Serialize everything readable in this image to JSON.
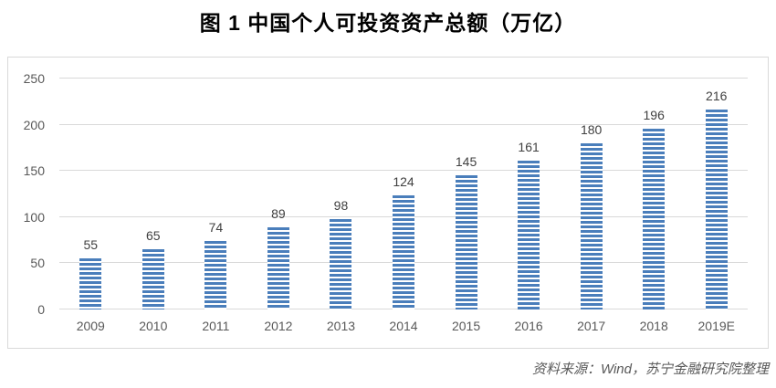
{
  "title": "图 1 中国个人可投资资产总额（万亿）",
  "source": "资料来源：Wind，苏宁金融研究院整理",
  "colors": {
    "bar_blue": "#4a7ebb",
    "grid": "#d9d9d9",
    "panel_border": "#d9d9d9",
    "axis_text": "#595959",
    "value_text": "#404040",
    "title_text": "#000000"
  },
  "chart_data": {
    "type": "bar",
    "categories": [
      "2009",
      "2010",
      "2011",
      "2012",
      "2013",
      "2014",
      "2015",
      "2016",
      "2017",
      "2018",
      "2019E"
    ],
    "values": [
      55,
      65,
      74,
      89,
      98,
      124,
      145,
      161,
      180,
      196,
      216
    ],
    "title": "图 1 中国个人可投资资产总额（万亿）",
    "xlabel": "",
    "ylabel": "",
    "ylim": [
      0,
      250
    ],
    "yticks": [
      0,
      50,
      100,
      150,
      200,
      250
    ],
    "grid": "horizontal",
    "legend": "none",
    "bar_pattern": "horizontal-stripes"
  }
}
